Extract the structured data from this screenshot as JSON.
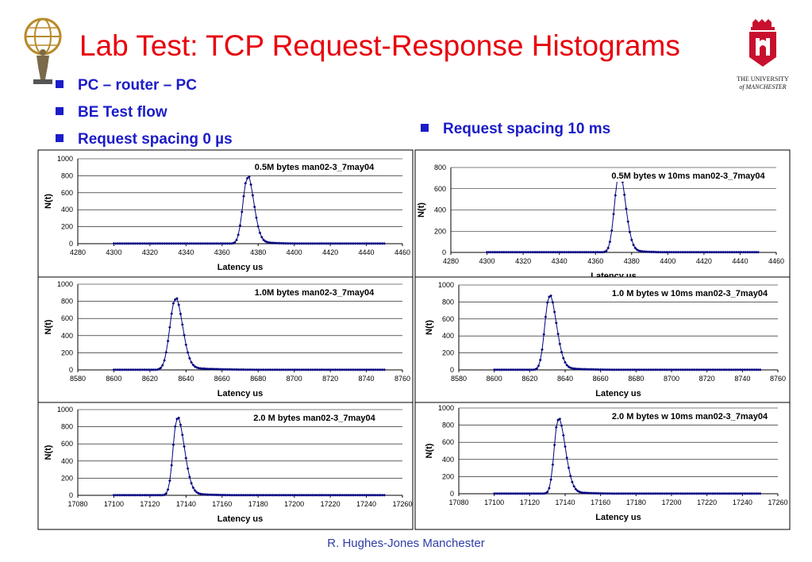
{
  "slide": {
    "title": "Lab Test: TCP Request-Response Histograms",
    "bullets_left": [
      "PC – router – PC",
      "BE Test flow",
      "Request spacing 0 µs"
    ],
    "bullet_right": "Request spacing 10 ms",
    "footer": "R. Hughes-Jones  Manchester",
    "logo_right_text": [
      "THE UNIVERSITY",
      "of MANCHESTER"
    ],
    "colors": {
      "title": "#e8000b",
      "bullets": "#1c1cc8",
      "series": "#000080",
      "footer": "#2e3ca8"
    }
  },
  "chart_data": [
    {
      "type": "line",
      "title": "0.5M bytes man02-3_7may04",
      "xlabel": "Latency us",
      "ylabel": "N(t)",
      "xlim": [
        4280,
        4460
      ],
      "xticks": [
        4280,
        4300,
        4320,
        4340,
        4360,
        4380,
        4400,
        4420,
        4440,
        4460
      ],
      "ylim": [
        0,
        1000
      ],
      "yticks": [
        0,
        200,
        400,
        600,
        800,
        1000
      ],
      "peak_x": 4374,
      "peak_y": 770,
      "x_range": [
        4300,
        4450
      ],
      "rise": 2.5,
      "fall": 3.5,
      "tail_scale": 8,
      "tail_amp": 0.07,
      "step": 1,
      "grid": true
    },
    {
      "type": "line",
      "title": "1.0M bytes man02-3_7may04",
      "xlabel": "Latency us",
      "ylabel": "N(t)",
      "xlim": [
        8580,
        8760
      ],
      "xticks": [
        8580,
        8600,
        8620,
        8640,
        8660,
        8680,
        8700,
        8720,
        8740,
        8760
      ],
      "ylim": [
        0,
        1000
      ],
      "yticks": [
        0,
        200,
        400,
        600,
        800,
        1000
      ],
      "peak_x": 8634,
      "peak_y": 820,
      "x_range": [
        8600,
        8750
      ],
      "rise": 3.0,
      "fall": 4.0,
      "tail_scale": 15,
      "tail_amp": 0.05,
      "step": 1,
      "grid": true
    },
    {
      "type": "line",
      "title": "2.0 M bytes man02-3_7may04",
      "xlabel": "Latency us",
      "ylabel": "N(t)",
      "xlim": [
        17080,
        17260
      ],
      "xticks": [
        17080,
        17100,
        17120,
        17140,
        17160,
        17180,
        17200,
        17220,
        17240,
        17260
      ],
      "ylim": [
        0,
        1000
      ],
      "yticks": [
        0,
        200,
        400,
        600,
        800,
        1000
      ],
      "peak_x": 17135,
      "peak_y": 890,
      "x_range": [
        17100,
        17250
      ],
      "rise": 2.2,
      "fall": 4.0,
      "tail_scale": 10,
      "tail_amp": 0.05,
      "step": 1,
      "grid": true
    },
    {
      "type": "line",
      "title": "0.5M bytes w 10ms man02-3_7may04",
      "xlabel": "Latency us",
      "ylabel": "N(t)",
      "xlim": [
        4280,
        4460
      ],
      "xticks": [
        4280,
        4300,
        4320,
        4340,
        4360,
        4380,
        4400,
        4420,
        4440,
        4460
      ],
      "ylim": [
        0,
        800
      ],
      "yticks": [
        0,
        200,
        400,
        600,
        800
      ],
      "peak_x": 4373,
      "peak_y": 740,
      "x_range": [
        4300,
        4450
      ],
      "rise": 2.5,
      "fall": 3.5,
      "tail_scale": 8,
      "tail_amp": 0.06,
      "step": 1,
      "grid": true
    },
    {
      "type": "line",
      "title": "1.0 M bytes w 10ms man02-3_7may04",
      "xlabel": "Latency us",
      "ylabel": "N(t)",
      "xlim": [
        8580,
        8760
      ],
      "xticks": [
        8580,
        8600,
        8620,
        8640,
        8660,
        8680,
        8700,
        8720,
        8740,
        8760
      ],
      "ylim": [
        0,
        1000
      ],
      "yticks": [
        0,
        200,
        400,
        600,
        800,
        1000
      ],
      "peak_x": 8631,
      "peak_y": 860,
      "x_range": [
        8600,
        8750
      ],
      "rise": 2.5,
      "fall": 4.0,
      "tail_scale": 12,
      "tail_amp": 0.05,
      "step": 1,
      "grid": true
    },
    {
      "type": "line",
      "title": "2.0 M bytes w 10ms man02-3_7may04",
      "xlabel": "Latency us",
      "ylabel": "N(t)",
      "xlim": [
        17080,
        17260
      ],
      "xticks": [
        17080,
        17100,
        17120,
        17140,
        17160,
        17180,
        17200,
        17220,
        17240,
        17260
      ],
      "ylim": [
        0,
        1000
      ],
      "yticks": [
        0,
        200,
        400,
        600,
        800,
        1000
      ],
      "peak_x": 17136,
      "peak_y": 860,
      "x_range": [
        17100,
        17250
      ],
      "rise": 2.2,
      "fall": 4.0,
      "tail_scale": 10,
      "tail_amp": 0.05,
      "step": 1,
      "grid": true
    }
  ]
}
